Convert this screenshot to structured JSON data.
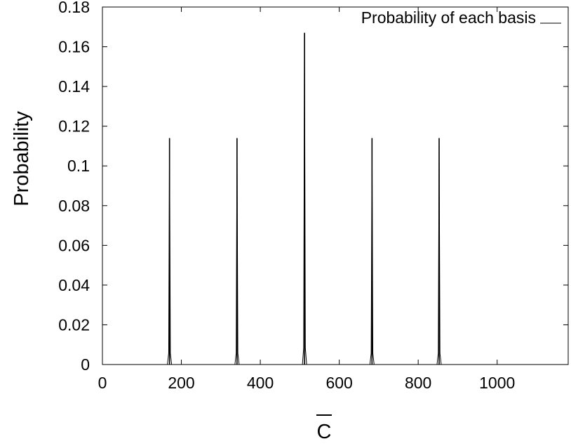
{
  "chart_data": {
    "type": "line",
    "title": "",
    "xlabel": "C",
    "xlabel_overline": true,
    "ylabel": "Probability",
    "xlim": [
      0,
      1180
    ],
    "ylim": [
      0,
      0.18
    ],
    "xticks": [
      0,
      200,
      400,
      600,
      800,
      1000
    ],
    "xtick_labels": [
      "0",
      "200",
      "400",
      "600",
      "800",
      "1000"
    ],
    "yticks": [
      0,
      0.02,
      0.04,
      0.06,
      0.08,
      0.1,
      0.12,
      0.14,
      0.16,
      0.18
    ],
    "ytick_labels": [
      "0",
      "0.02",
      "0.04",
      "0.06",
      "0.08",
      "0.1",
      "0.12",
      "0.14",
      "0.16",
      "0.18"
    ],
    "grid": false,
    "legend_position": "top-right",
    "series": [
      {
        "name": "Probability of each basis",
        "color": "#000000",
        "peaks": [
          {
            "x": 170,
            "y": 0.114
          },
          {
            "x": 341,
            "y": 0.114
          },
          {
            "x": 512,
            "y": 0.167
          },
          {
            "x": 683,
            "y": 0.114
          },
          {
            "x": 853,
            "y": 0.114
          }
        ],
        "baseline": 0
      }
    ]
  }
}
